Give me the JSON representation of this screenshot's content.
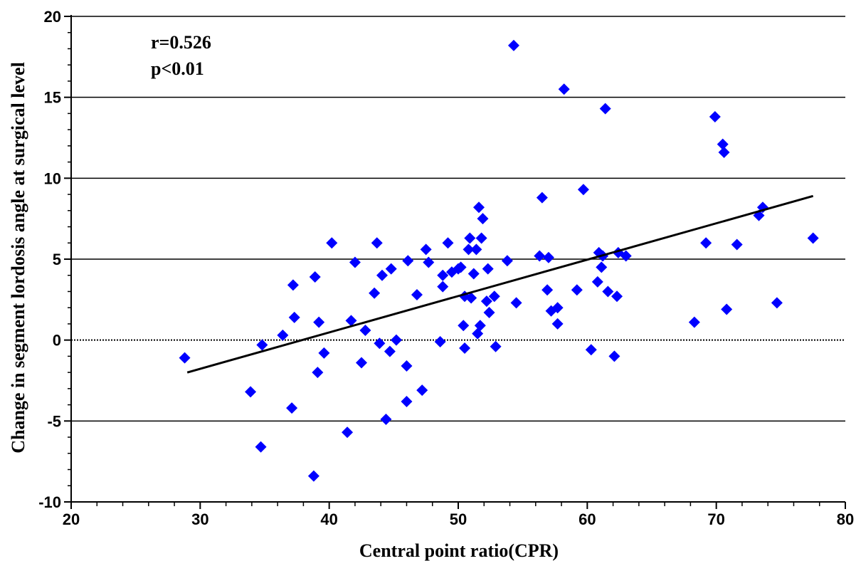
{
  "chart_data": {
    "type": "scatter",
    "title": "",
    "xlabel": "Central point ratio(CPR)",
    "ylabel": "Change in segment lordosis angle at surgical level",
    "xlim": [
      20,
      80
    ],
    "ylim": [
      -10,
      20
    ],
    "x_ticks": [
      20,
      30,
      40,
      50,
      60,
      70,
      80
    ],
    "y_ticks": [
      -10,
      -5,
      0,
      5,
      10,
      15,
      20
    ],
    "grid": "horizontal",
    "marker_color": "#0000FF",
    "line_color": "#000000",
    "annotations": [
      "r=0.526",
      "p<0.01"
    ],
    "trendline": {
      "x": [
        29,
        77.5
      ],
      "y": [
        -2.0,
        8.9
      ]
    },
    "points": [
      [
        28.8,
        -1.1
      ],
      [
        33.9,
        -3.2
      ],
      [
        34.7,
        -6.6
      ],
      [
        34.8,
        -0.3
      ],
      [
        36.4,
        0.3
      ],
      [
        37.1,
        -4.2
      ],
      [
        37.2,
        3.4
      ],
      [
        37.3,
        1.4
      ],
      [
        38.8,
        -8.4
      ],
      [
        38.9,
        3.9
      ],
      [
        39.1,
        -2.0
      ],
      [
        39.2,
        1.1
      ],
      [
        39.6,
        -0.8
      ],
      [
        40.2,
        6.0
      ],
      [
        41.4,
        -5.7
      ],
      [
        41.7,
        1.2
      ],
      [
        42.0,
        4.8
      ],
      [
        42.5,
        -1.4
      ],
      [
        42.8,
        0.6
      ],
      [
        43.5,
        2.9
      ],
      [
        43.7,
        6.0
      ],
      [
        43.9,
        -0.2
      ],
      [
        44.1,
        4.0
      ],
      [
        44.4,
        -4.9
      ],
      [
        44.7,
        -0.7
      ],
      [
        44.8,
        4.4
      ],
      [
        45.2,
        0.0
      ],
      [
        46.0,
        -1.6
      ],
      [
        46.0,
        -3.8
      ],
      [
        46.1,
        4.9
      ],
      [
        46.8,
        2.8
      ],
      [
        47.2,
        -3.1
      ],
      [
        47.5,
        5.6
      ],
      [
        47.7,
        4.8
      ],
      [
        48.6,
        -0.1
      ],
      [
        48.8,
        4.0
      ],
      [
        48.8,
        3.3
      ],
      [
        49.2,
        6.0
      ],
      [
        49.5,
        4.2
      ],
      [
        50.0,
        4.4
      ],
      [
        50.2,
        4.5
      ],
      [
        50.4,
        0.9
      ],
      [
        50.5,
        2.7
      ],
      [
        50.5,
        -0.5
      ],
      [
        50.8,
        5.6
      ],
      [
        50.9,
        6.3
      ],
      [
        51.0,
        2.6
      ],
      [
        51.2,
        4.1
      ],
      [
        51.4,
        5.6
      ],
      [
        51.5,
        0.4
      ],
      [
        51.6,
        8.2
      ],
      [
        51.7,
        0.9
      ],
      [
        51.8,
        6.3
      ],
      [
        51.9,
        7.5
      ],
      [
        52.2,
        2.4
      ],
      [
        52.3,
        4.4
      ],
      [
        52.4,
        1.7
      ],
      [
        52.8,
        2.7
      ],
      [
        52.9,
        -0.4
      ],
      [
        53.8,
        4.9
      ],
      [
        54.3,
        18.2
      ],
      [
        54.5,
        2.3
      ],
      [
        56.3,
        5.2
      ],
      [
        56.5,
        8.8
      ],
      [
        56.9,
        3.1
      ],
      [
        57.0,
        5.1
      ],
      [
        57.2,
        1.8
      ],
      [
        57.7,
        2.0
      ],
      [
        57.7,
        1.0
      ],
      [
        58.2,
        15.5
      ],
      [
        59.2,
        3.1
      ],
      [
        59.7,
        9.3
      ],
      [
        60.3,
        -0.6
      ],
      [
        60.8,
        3.6
      ],
      [
        60.9,
        5.4
      ],
      [
        61.1,
        4.5
      ],
      [
        61.2,
        5.2
      ],
      [
        61.4,
        14.3
      ],
      [
        61.6,
        3.0
      ],
      [
        62.1,
        -1.0
      ],
      [
        62.3,
        2.7
      ],
      [
        62.4,
        5.4
      ],
      [
        63.0,
        5.2
      ],
      [
        68.3,
        1.1
      ],
      [
        69.2,
        6.0
      ],
      [
        69.9,
        13.8
      ],
      [
        70.5,
        12.1
      ],
      [
        70.6,
        11.6
      ],
      [
        70.8,
        1.9
      ],
      [
        71.6,
        5.9
      ],
      [
        73.3,
        7.7
      ],
      [
        73.6,
        8.2
      ],
      [
        74.7,
        2.3
      ],
      [
        77.5,
        6.3
      ]
    ]
  }
}
